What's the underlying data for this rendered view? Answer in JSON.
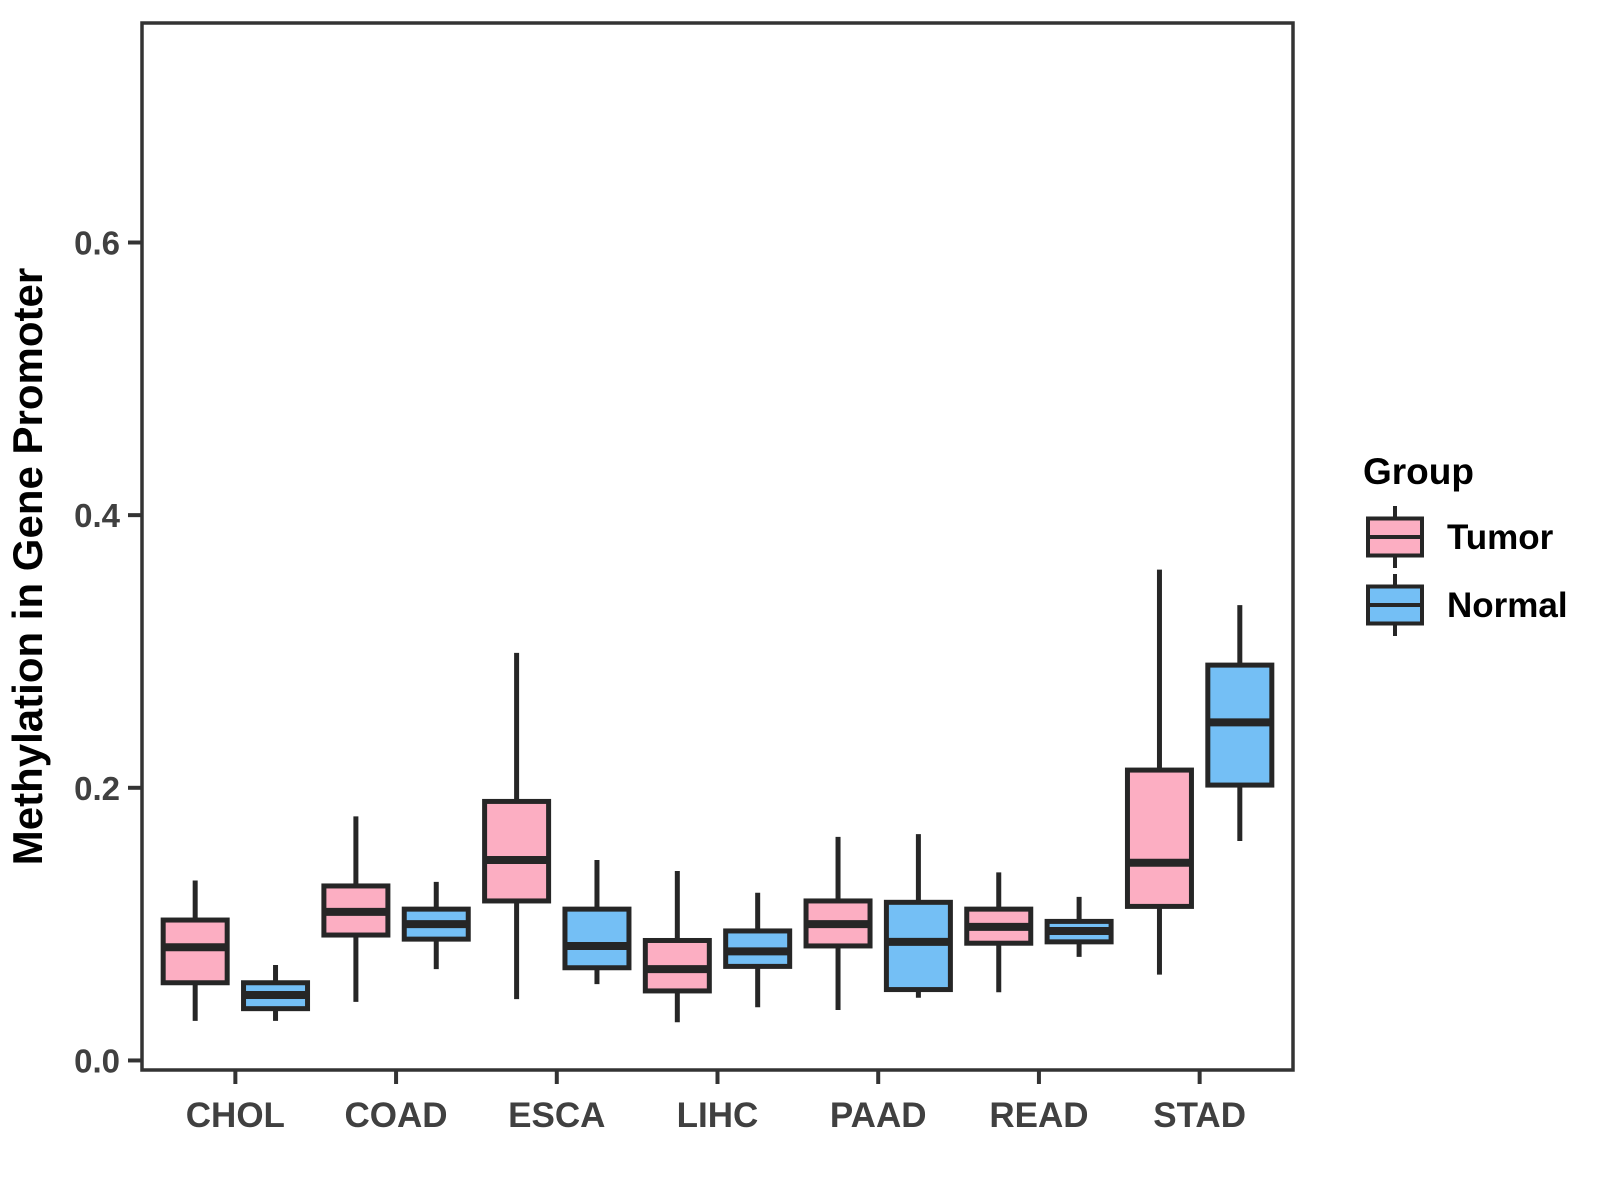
{
  "chart_data": {
    "type": "boxplot",
    "title": "",
    "xlabel": "",
    "ylabel": "Methylation in Gene Promoter",
    "categories": [
      "CHOL",
      "COAD",
      "ESCA",
      "LIHC",
      "PAAD",
      "READ",
      "STAD"
    ],
    "y_axis": {
      "tick_labels": [
        "0.0",
        "0.2",
        "0.4",
        "0.6"
      ],
      "tick_values": [
        0.0,
        0.2,
        0.4,
        0.6
      ],
      "min": -0.007,
      "max": 0.761
    },
    "grid": false,
    "legend": {
      "title": "Group",
      "position": "right"
    },
    "series": [
      {
        "name": "Tumor",
        "fill": "#FCAEC2",
        "boxes": [
          {
            "category": "CHOL",
            "whisker_low": 0.029,
            "q1": 0.057,
            "median": 0.083,
            "q3": 0.103,
            "whisker_high": 0.132
          },
          {
            "category": "COAD",
            "whisker_low": 0.043,
            "q1": 0.092,
            "median": 0.109,
            "q3": 0.128,
            "whisker_high": 0.179
          },
          {
            "category": "ESCA",
            "whisker_low": 0.045,
            "q1": 0.117,
            "median": 0.147,
            "q3": 0.19,
            "whisker_high": 0.299
          },
          {
            "category": "LIHC",
            "whisker_low": 0.028,
            "q1": 0.051,
            "median": 0.067,
            "q3": 0.088,
            "whisker_high": 0.139
          },
          {
            "category": "PAAD",
            "whisker_low": 0.037,
            "q1": 0.084,
            "median": 0.1,
            "q3": 0.117,
            "whisker_high": 0.164
          },
          {
            "category": "READ",
            "whisker_low": 0.05,
            "q1": 0.086,
            "median": 0.098,
            "q3": 0.111,
            "whisker_high": 0.138
          },
          {
            "category": "STAD",
            "whisker_low": 0.063,
            "q1": 0.113,
            "median": 0.145,
            "q3": 0.213,
            "whisker_high": 0.36
          }
        ]
      },
      {
        "name": "Normal",
        "fill": "#74BFF5",
        "boxes": [
          {
            "category": "CHOL",
            "whisker_low": 0.029,
            "q1": 0.038,
            "median": 0.048,
            "q3": 0.057,
            "whisker_high": 0.07
          },
          {
            "category": "COAD",
            "whisker_low": 0.067,
            "q1": 0.089,
            "median": 0.1,
            "q3": 0.111,
            "whisker_high": 0.131
          },
          {
            "category": "ESCA",
            "whisker_low": 0.056,
            "q1": 0.068,
            "median": 0.084,
            "q3": 0.111,
            "whisker_high": 0.147
          },
          {
            "category": "LIHC",
            "whisker_low": 0.039,
            "q1": 0.069,
            "median": 0.08,
            "q3": 0.095,
            "whisker_high": 0.123
          },
          {
            "category": "PAAD",
            "whisker_low": 0.046,
            "q1": 0.052,
            "median": 0.087,
            "q3": 0.116,
            "whisker_high": 0.166
          },
          {
            "category": "READ",
            "whisker_low": 0.076,
            "q1": 0.087,
            "median": 0.095,
            "q3": 0.102,
            "whisker_high": 0.12
          },
          {
            "category": "STAD",
            "whisker_low": 0.161,
            "q1": 0.202,
            "median": 0.248,
            "q3": 0.29,
            "whisker_high": 0.334
          }
        ]
      }
    ],
    "colors": {
      "tumor_fill": "#FCAEC2",
      "normal_fill": "#74BFF5",
      "box_stroke": "#262626",
      "axis_text": "#404040",
      "axis_title": "#000000",
      "panel_border": "#333333",
      "background": "#ffffff"
    }
  }
}
